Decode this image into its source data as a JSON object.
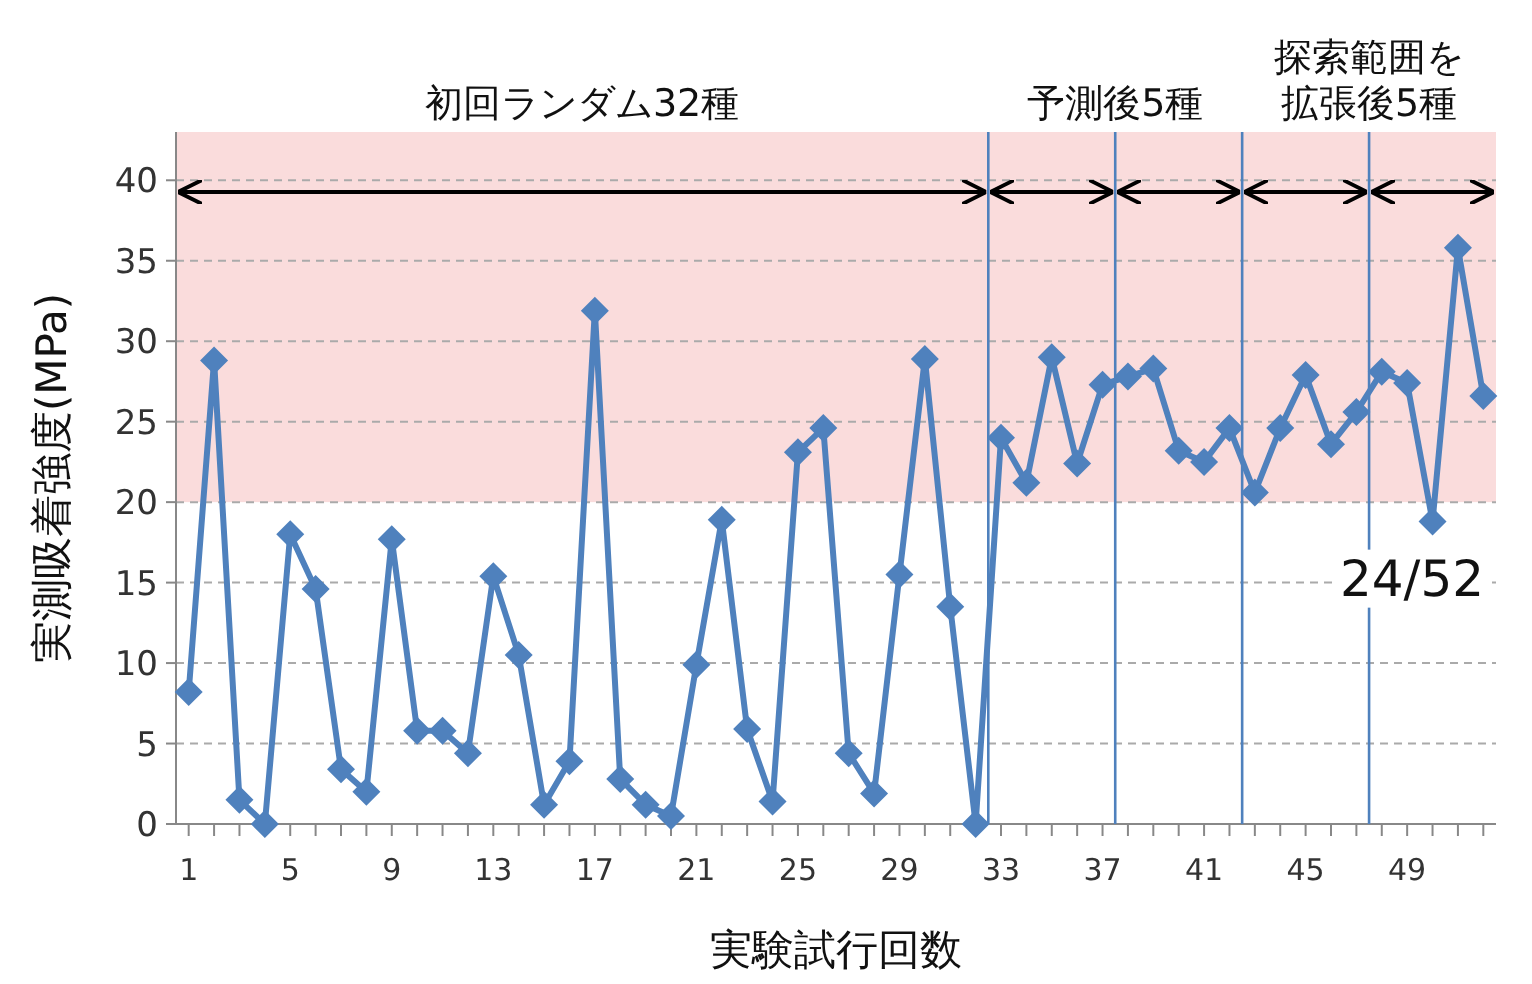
{
  "chart_data": {
    "type": "line",
    "xlabel": "実験試行回数",
    "ylabel": "実測吸着強度(MPa)",
    "x": [
      1,
      2,
      3,
      4,
      5,
      6,
      7,
      8,
      9,
      10,
      11,
      12,
      13,
      14,
      15,
      16,
      17,
      18,
      19,
      20,
      21,
      22,
      23,
      24,
      25,
      26,
      27,
      28,
      29,
      30,
      31,
      32,
      33,
      34,
      35,
      36,
      37,
      38,
      39,
      40,
      41,
      42,
      43,
      44,
      45,
      46,
      47,
      48,
      49,
      50,
      51,
      52
    ],
    "series": [
      {
        "color": "#4f81bd",
        "values": [
          8.2,
          28.8,
          1.5,
          0,
          18,
          14.6,
          3.4,
          2,
          17.7,
          5.8,
          5.8,
          4.4,
          15.4,
          10.5,
          1.2,
          3.9,
          31.9,
          2.8,
          1.2,
          0.5,
          9.9,
          18.9,
          5.9,
          1.4,
          23.1,
          24.6,
          4.4,
          1.9,
          15.5,
          28.9,
          13.5,
          0,
          24,
          21.2,
          29,
          22.4,
          27.3,
          27.8,
          28.3,
          23.2,
          22.5,
          24.6,
          20.6,
          24.6,
          27.9,
          23.6,
          25.6,
          28.1,
          27.4,
          18.8,
          35.8,
          26.6
        ]
      }
    ],
    "marker": "diamond",
    "line_style": "solid",
    "grid": "y",
    "xlim": [
      0.5,
      52.5
    ],
    "xticks": [
      1,
      {
        "value": 2,
        "label": null
      },
      {
        "value": 3,
        "label": null
      },
      {
        "value": 4,
        "label": null
      },
      5,
      {
        "value": 6,
        "label": null
      },
      {
        "value": 7,
        "label": null
      },
      {
        "value": 8,
        "label": null
      },
      9,
      {
        "value": 10,
        "label": null
      },
      {
        "value": 11,
        "label": null
      },
      {
        "value": 12,
        "label": null
      },
      13,
      {
        "value": 14,
        "label": null
      },
      {
        "value": 15,
        "label": null
      },
      {
        "value": 16,
        "label": null
      },
      17,
      {
        "value": 18,
        "label": null
      },
      {
        "value": 19,
        "label": null
      },
      {
        "value": 20,
        "label": null
      },
      21,
      {
        "value": 22,
        "label": null
      },
      {
        "value": 23,
        "label": null
      },
      {
        "value": 24,
        "label": null
      },
      25,
      {
        "value": 26,
        "label": null
      },
      {
        "value": 27,
        "label": null
      },
      {
        "value": 28,
        "label": null
      },
      29,
      {
        "value": 30,
        "label": null
      },
      {
        "value": 31,
        "label": null
      },
      {
        "value": 32,
        "label": null
      },
      33,
      {
        "value": 34,
        "label": null
      },
      {
        "value": 35,
        "label": null
      },
      {
        "value": 36,
        "label": null
      },
      37,
      {
        "value": 38,
        "label": null
      },
      {
        "value": 39,
        "label": null
      },
      {
        "value": 40,
        "label": null
      },
      41,
      {
        "value": 42,
        "label": null
      },
      {
        "value": 43,
        "label": null
      },
      {
        "value": 44,
        "label": null
      },
      45,
      {
        "value": 46,
        "label": null
      },
      {
        "value": 47,
        "label": null
      },
      {
        "value": 48,
        "label": null
      },
      49,
      {
        "value": 50,
        "label": null
      },
      {
        "value": 51,
        "label": null
      },
      {
        "value": 52,
        "label": null
      }
    ],
    "ylim": [
      0,
      43
    ],
    "yticks": [
      0,
      5,
      10,
      15,
      20,
      25,
      30,
      35,
      40
    ],
    "ref_lines": [
      {
        "axis": "x",
        "value": 32.5,
        "color": "#4f81bd"
      },
      {
        "axis": "x",
        "value": 37.5,
        "color": "#4f81bd"
      },
      {
        "axis": "x",
        "value": 42.5,
        "color": "#4f81bd"
      },
      {
        "axis": "x",
        "value": 47.5,
        "color": "#4f81bd"
      }
    ],
    "bands": [
      {
        "axis": "y",
        "from": 20,
        "to": 43,
        "color": "#fadcdc"
      }
    ],
    "annotations": [
      "初回ランダム32種",
      "予測後5種",
      "探索範囲を拡張後5種",
      "24/52"
    ]
  }
}
